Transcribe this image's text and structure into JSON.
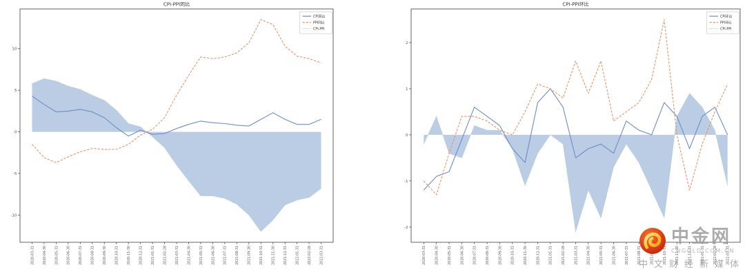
{
  "watermark": {
    "site_name": "中金网",
    "site_domain": "CNGOLD.COM.CN",
    "slogan": "中文财经新媒体",
    "logo_red": "#d6330f",
    "logo_gold": "#f3a91f"
  },
  "chart_data": [
    {
      "type": "line",
      "title": "CPI-PPI同比",
      "grid": false,
      "legend_position": "upper right",
      "categories": [
        "2020-03-31",
        "2020-04-30",
        "2020-05-31",
        "2020-06-30",
        "2020-07-31",
        "2020-08-31",
        "2020-09-30",
        "2020-10-31",
        "2020-11-30",
        "2020-12-31",
        "2021-01-31",
        "2021-02-28",
        "2021-03-31",
        "2021-04-30",
        "2021-05-31",
        "2021-06-30",
        "2021-07-31",
        "2021-08-31",
        "2021-09-30",
        "2021-10-31",
        "2021-11-30",
        "2021-12-31",
        "2022-01-31",
        "2022-02-28",
        "2022-03-31"
      ],
      "yticks": [
        -10,
        -5,
        0,
        5,
        10
      ],
      "ylim": [
        -13.28,
        14.78
      ],
      "series": [
        {
          "name": "CPI同比",
          "style": "solid",
          "color": "#6d8cc7",
          "values": [
            4.3,
            3.3,
            2.4,
            2.5,
            2.7,
            2.4,
            1.7,
            0.5,
            -0.5,
            0.2,
            -0.3,
            -0.2,
            0.4,
            0.9,
            1.3,
            1.1,
            1.0,
            0.8,
            0.7,
            1.5,
            2.3,
            1.5,
            0.9,
            0.9,
            1.5
          ]
        },
        {
          "name": "PPI同比",
          "style": "dashed",
          "color": "#ea8e66",
          "values": [
            -1.5,
            -3.1,
            -3.7,
            -3.0,
            -2.4,
            -2.0,
            -2.1,
            -2.1,
            -1.5,
            -0.4,
            0.3,
            1.7,
            4.4,
            6.8,
            9.0,
            8.8,
            9.0,
            9.5,
            10.7,
            13.5,
            12.9,
            10.3,
            9.1,
            8.8,
            8.3
          ]
        },
        {
          "name": "CPI-PPI",
          "style": "dotted",
          "color": "#9ccaa5",
          "fill": true,
          "fill_color": "#b7c9e4",
          "values": [
            5.8,
            6.4,
            6.1,
            5.5,
            5.1,
            4.4,
            3.8,
            2.6,
            1.0,
            0.6,
            -0.6,
            -1.9,
            -4.0,
            -5.9,
            -7.7,
            -7.7,
            -8.0,
            -8.7,
            -10.0,
            -12.0,
            -10.6,
            -8.8,
            -8.2,
            -7.9,
            -6.8
          ]
        }
      ]
    },
    {
      "type": "line",
      "title": "CPI-PPI环比",
      "grid": false,
      "legend_position": "upper right",
      "categories": [
        "2020-03-31",
        "2020-04-30",
        "2020-05-31",
        "2020-06-30",
        "2020-07-31",
        "2020-08-31",
        "2020-09-30",
        "2020-10-31",
        "2020-11-30",
        "2020-12-31",
        "2021-01-31",
        "2021-02-28",
        "2021-03-31",
        "2021-04-30",
        "2021-05-31",
        "2021-06-30",
        "2021-07-31",
        "2021-08-31",
        "2021-09-30",
        "2021-10-31",
        "2021-11-30",
        "2021-12-31",
        "2022-01-31",
        "2022-02-28",
        "2022-03-31"
      ],
      "yticks": [
        -2,
        -1,
        0,
        1,
        2
      ],
      "ylim": [
        -2.33,
        2.73
      ],
      "series": [
        {
          "name": "CPI环比",
          "style": "solid",
          "color": "#6d8cc7",
          "values": [
            -1.2,
            -0.9,
            -0.8,
            -0.1,
            0.6,
            0.4,
            0.2,
            -0.3,
            -0.6,
            0.7,
            1.0,
            0.6,
            -0.5,
            -0.3,
            -0.2,
            -0.4,
            0.3,
            0.1,
            0.0,
            0.7,
            0.4,
            -0.3,
            0.4,
            0.6,
            0.0
          ]
        },
        {
          "name": "PPI环比",
          "style": "dashed",
          "color": "#ea8e66",
          "values": [
            -1.0,
            -1.3,
            -0.4,
            0.4,
            0.4,
            0.3,
            0.1,
            0.0,
            0.5,
            1.1,
            1.0,
            0.8,
            1.6,
            0.9,
            1.6,
            0.3,
            0.5,
            0.7,
            1.2,
            2.5,
            0.0,
            -1.2,
            -0.2,
            0.5,
            1.1
          ]
        },
        {
          "name": "CPI-PPI",
          "style": "dotted",
          "color": "#9ccaa5",
          "fill": true,
          "fill_color": "#b7c9e4",
          "values": [
            -0.2,
            0.4,
            -0.4,
            -0.5,
            0.2,
            0.1,
            0.1,
            -0.3,
            -1.1,
            -0.4,
            0.0,
            -0.2,
            -2.1,
            -1.2,
            -1.8,
            -0.7,
            -0.2,
            -0.6,
            -1.2,
            -1.8,
            0.4,
            0.9,
            0.6,
            0.1,
            -1.1
          ]
        }
      ]
    }
  ]
}
